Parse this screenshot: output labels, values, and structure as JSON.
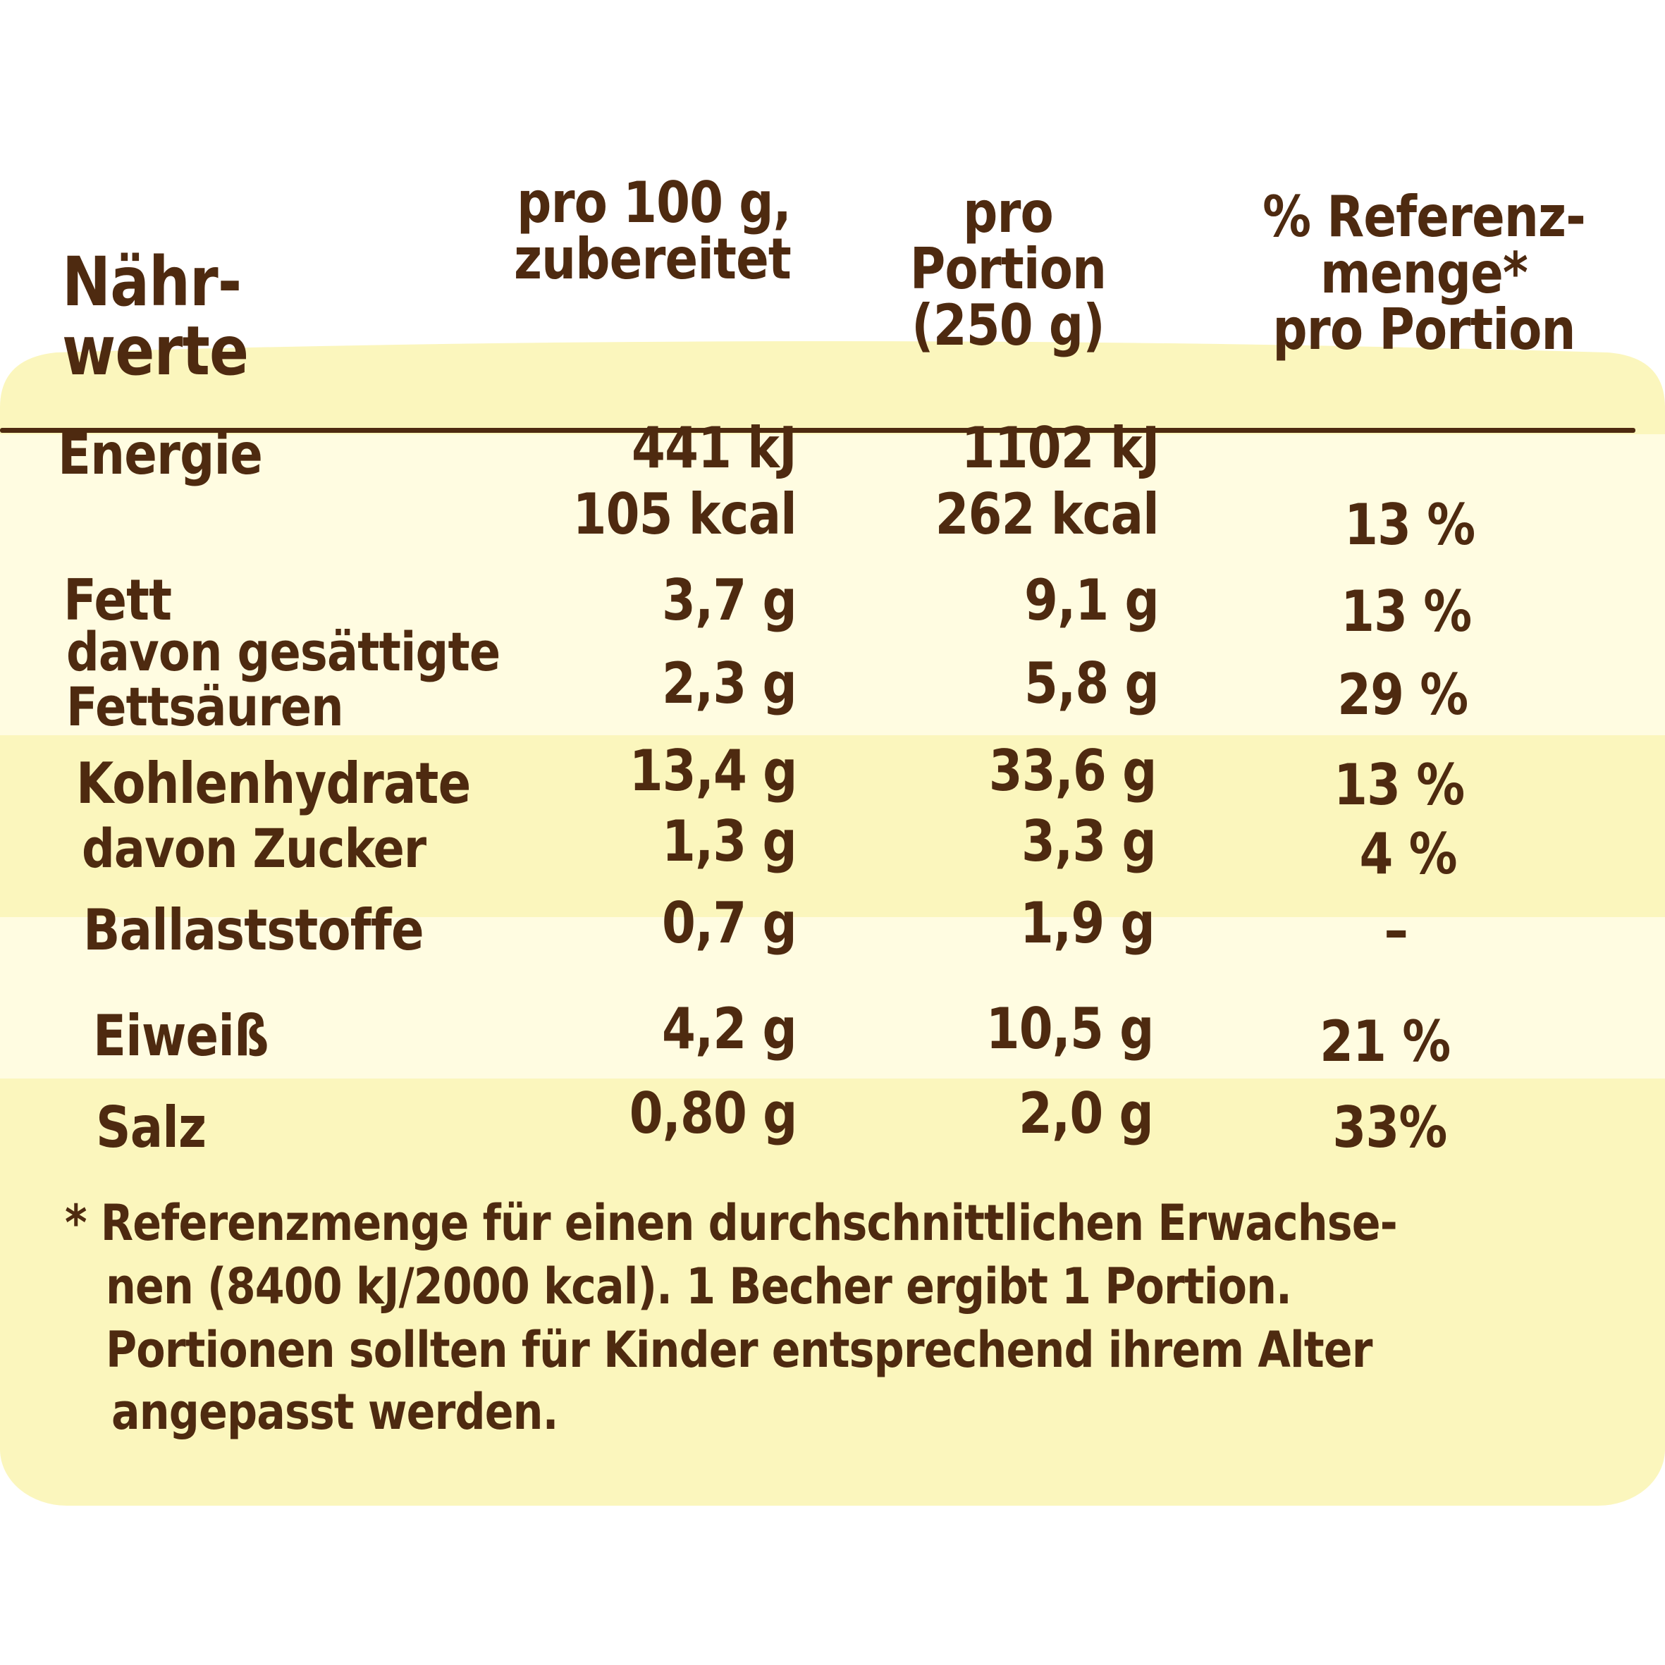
{
  "header": {
    "nutrient_col": "Nähr-\nwerte",
    "per100_col": "pro 100 g,\nzubereitet",
    "portion_col": "pro\nPortion\n(250 g)",
    "ri_col": "% Referenz-\nmenge*\npro Portion"
  },
  "rows": {
    "energie": {
      "label": "Energie",
      "per100_kj": "441 kJ",
      "per100_kcal": "105 kcal",
      "portion_kj": "1102 kJ",
      "portion_kcal": "262 kcal",
      "ri": "13 %"
    },
    "fett": {
      "label": "Fett",
      "per100": "3,7 g",
      "portion": "9,1 g",
      "ri": "13 %"
    },
    "gesaettigte": {
      "label": "davon gesättigte\nFettsäuren",
      "per100": "2,3 g",
      "portion": "5,8 g",
      "ri": "29 %"
    },
    "kohlenhydrate": {
      "label": "Kohlenhydrate",
      "per100": "13,4 g",
      "portion": "33,6 g",
      "ri": "13 %"
    },
    "zucker": {
      "label": "davon Zucker",
      "per100": "1,3 g",
      "portion": "3,3 g",
      "ri": "4 %"
    },
    "ballaststoffe": {
      "label": "Ballaststoffe",
      "per100": "0,7 g",
      "portion": "1,9 g",
      "ri": "–"
    },
    "eiweiss": {
      "label": "Eiweiß",
      "per100": "4,2 g",
      "portion": "10,5 g",
      "ri": "21 %"
    },
    "salz": {
      "label": "Salz",
      "per100": "0,80 g",
      "portion": "2,0 g",
      "ri": "33%"
    }
  },
  "footnote": {
    "line1": "* Referenzmenge für einen durchschnittlichen Erwachse-",
    "line2": "nen (8400 kJ/2000 kcal). 1 Becher ergibt 1 Portion.",
    "line3": "Portionen sollten für Kinder entsprechend ihrem Alter",
    "line4": "angepasst werden."
  },
  "colors": {
    "panel": "#fbf6bd",
    "band": "#fffce1",
    "text": "#4e2a10"
  }
}
